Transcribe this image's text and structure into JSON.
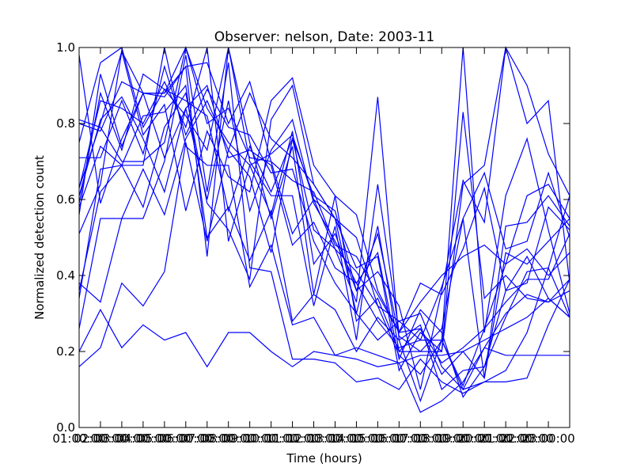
{
  "chart_data": {
    "type": "line",
    "title": "Observer: nelson, Date: 2003-11",
    "xlabel": "Time (hours)",
    "ylabel": "Normalized detection count",
    "xlim": [
      1,
      24
    ],
    "ylim": [
      0.0,
      1.0
    ],
    "x": [
      1,
      2,
      3,
      4,
      5,
      6,
      7,
      8,
      9,
      10,
      11,
      12,
      13,
      14,
      15,
      16,
      17,
      18,
      19,
      20,
      21,
      22,
      23,
      24
    ],
    "x_tick_values": [
      1,
      3,
      5,
      7,
      9,
      11,
      13,
      15,
      17,
      19,
      21,
      23
    ],
    "x_tick_labels": [
      "01:00:00",
      "03:00:00",
      "05:00:00",
      "07:00:00",
      "09:00:00",
      "11:00:00",
      "13:00:00",
      "15:00:00",
      "17:00:00",
      "19:00:00",
      "21:00:00",
      "23:00:00"
    ],
    "x_tick_overlay_values": [
      2,
      4,
      6,
      8,
      10,
      12,
      14,
      16,
      18,
      20,
      22
    ],
    "x_tick_overlay_labels": [
      "02:00:00",
      "04:00:00",
      "06:00:00",
      "08:00:00",
      "10:00:00",
      "12:00:00",
      "14:00:00",
      "16:00:00",
      "18:00:00",
      "20:00:00",
      "22:00:00"
    ],
    "y_tick_values": [
      0.0,
      0.2,
      0.4,
      0.6,
      0.8,
      1.0
    ],
    "y_tick_labels": [
      "0.0",
      "0.2",
      "0.4",
      "0.6",
      "0.8",
      "1.0"
    ],
    "grid": false,
    "legend": false,
    "line_color": "#0000ff",
    "series": [
      {
        "values": [
          0.16,
          0.21,
          0.38,
          0.32,
          0.41,
          0.75,
          0.49,
          0.73,
          0.88,
          0.76,
          0.71,
          0.64,
          0.55,
          0.3,
          0.23,
          0.28,
          0.3,
          0.16,
          0.1,
          0.12,
          0.15,
          0.25,
          0.42,
          0.61
        ]
      },
      {
        "values": [
          0.2,
          0.31,
          0.21,
          0.27,
          0.23,
          0.25,
          0.16,
          0.25,
          0.25,
          0.2,
          0.16,
          0.2,
          0.19,
          0.18,
          0.16,
          0.17,
          0.19,
          0.19,
          0.2,
          0.23,
          0.26,
          0.29,
          0.34,
          0.29
        ]
      },
      {
        "values": [
          0.38,
          0.33,
          0.55,
          0.55,
          0.7,
          0.98,
          0.62,
          0.96,
          0.42,
          0.41,
          0.18,
          0.18,
          0.17,
          0.12,
          0.13,
          0.1,
          0.18,
          0.12,
          0.09,
          0.12,
          0.12,
          0.13,
          0.27,
          0.39
        ]
      },
      {
        "values": [
          0.34,
          0.68,
          0.69,
          0.69,
          1.0,
          0.74,
          0.69,
          0.69,
          0.37,
          0.48,
          0.27,
          0.29,
          0.19,
          0.21,
          0.19,
          0.17,
          0.04,
          0.07,
          0.12,
          0.21,
          0.19,
          0.19,
          0.19,
          0.19
        ]
      },
      {
        "values": [
          0.51,
          0.64,
          0.99,
          0.88,
          0.87,
          0.95,
          0.45,
          1.0,
          0.7,
          0.61,
          0.61,
          0.32,
          0.53,
          0.23,
          0.64,
          0.25,
          0.38,
          0.35,
          0.47,
          0.63,
          0.36,
          0.45,
          0.34,
          0.29
        ]
      },
      {
        "values": [
          0.56,
          0.93,
          0.74,
          0.88,
          0.88,
          1.0,
          0.84,
          0.75,
          0.69,
          0.72,
          0.77,
          0.6,
          0.47,
          0.33,
          0.87,
          0.23,
          0.27,
          0.1,
          0.15,
          0.16,
          0.36,
          0.38,
          0.58,
          0.52
        ]
      },
      {
        "values": [
          0.63,
          0.8,
          0.99,
          0.77,
          0.85,
          0.57,
          0.78,
          0.66,
          0.62,
          0.86,
          0.92,
          0.69,
          0.61,
          0.56,
          0.36,
          0.25,
          0.33,
          0.4,
          0.45,
          0.48,
          0.43,
          0.61,
          0.64,
          0.55
        ]
      },
      {
        "values": [
          0.71,
          0.71,
          0.86,
          0.72,
          0.95,
          0.77,
          0.89,
          0.79,
          0.77,
          0.67,
          0.68,
          0.49,
          0.38,
          0.3,
          0.53,
          0.2,
          0.26,
          0.17,
          0.21,
          0.26,
          0.33,
          0.39,
          0.39,
          0.51
        ]
      },
      {
        "values": [
          0.8,
          0.78,
          0.91,
          0.88,
          0.88,
          0.95,
          0.96,
          0.8,
          0.91,
          0.7,
          0.65,
          0.62,
          0.48,
          0.45,
          0.35,
          0.25,
          0.26,
          0.14,
          0.2,
          0.13,
          0.53,
          0.54,
          0.61,
          0.53
        ]
      },
      {
        "values": [
          0.81,
          0.79,
          0.7,
          0.7,
          0.75,
          1.0,
          0.8,
          0.84,
          0.71,
          0.7,
          0.51,
          0.6,
          0.55,
          0.5,
          0.32,
          0.28,
          0.23,
          0.37,
          0.55,
          0.67,
          0.47,
          0.49,
          0.67,
          0.5
        ]
      },
      {
        "values": [
          0.98,
          0.59,
          0.76,
          0.88,
          0.71,
          0.84,
          0.9,
          0.71,
          0.73,
          0.69,
          0.48,
          0.54,
          0.42,
          0.38,
          0.46,
          0.18,
          0.31,
          0.25,
          0.08,
          0.16,
          0.29,
          0.41,
          0.42,
          0.29
        ]
      },
      {
        "values": [
          0.63,
          0.86,
          0.84,
          0.8,
          0.91,
          0.79,
          1.0,
          0.49,
          0.69,
          0.56,
          0.78,
          0.43,
          0.51,
          0.36,
          0.51,
          0.24,
          0.2,
          0.26,
          0.55,
          0.13,
          0.46,
          0.43,
          0.49,
          0.55
        ]
      },
      {
        "values": [
          0.61,
          0.81,
          0.87,
          0.76,
          0.62,
          0.84,
          0.6,
          0.86,
          0.57,
          0.73,
          0.81,
          0.59,
          0.49,
          0.38,
          0.28,
          0.21,
          0.23,
          0.23,
          0.1,
          0.21,
          0.3,
          0.35,
          0.33,
          0.39
        ]
      },
      {
        "values": [
          0.75,
          0.96,
          1.0,
          0.79,
          0.89,
          0.86,
          0.82,
          0.57,
          0.74,
          0.62,
          0.76,
          0.52,
          0.47,
          0.41,
          0.32,
          0.19,
          0.14,
          0.23,
          0.11,
          0.26,
          0.43,
          0.47,
          0.4,
          0.46
        ]
      },
      {
        "values": [
          0.59,
          0.88,
          0.73,
          0.93,
          0.89,
          0.82,
          0.73,
          1.0,
          0.75,
          0.55,
          0.74,
          0.35,
          0.61,
          0.28,
          0.34,
          0.2,
          0.2,
          0.2,
          0.83,
          0.34,
          0.4,
          0.34,
          0.33,
          0.36
        ]
      },
      {
        "values": [
          0.58,
          0.74,
          0.69,
          0.58,
          0.79,
          0.88,
          0.59,
          0.52,
          0.39,
          0.81,
          0.9,
          0.64,
          0.55,
          0.42,
          0.45,
          0.15,
          0.25,
          0.2,
          0.64,
          0.69,
          1.0,
          0.9,
          0.72,
          0.61
        ]
      },
      {
        "values": [
          0.26,
          0.55,
          0.55,
          0.68,
          0.56,
          0.76,
          0.86,
          0.73,
          0.66,
          0.46,
          0.76,
          0.61,
          0.57,
          0.36,
          0.41,
          0.32,
          0.1,
          0.36,
          0.65,
          0.54,
          1.0,
          0.8,
          0.86,
          0.38
        ]
      },
      {
        "values": [
          0.36,
          0.62,
          0.69,
          0.82,
          0.83,
          0.9,
          0.5,
          0.58,
          0.44,
          0.57,
          0.28,
          0.35,
          0.31,
          0.2,
          0.29,
          0.23,
          0.07,
          0.23,
          1.0,
          0.25,
          0.61,
          0.76,
          0.52,
          0.3
        ]
      }
    ]
  }
}
